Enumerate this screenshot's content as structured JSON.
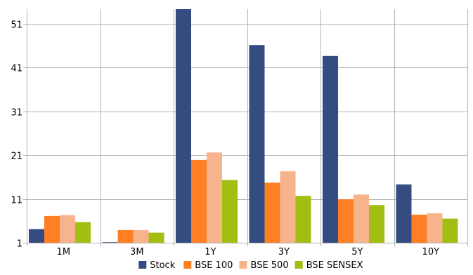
{
  "chart_data": {
    "type": "bar",
    "title": "",
    "xlabel": "",
    "ylabel": "",
    "categories": [
      "1M",
      "3M",
      "1Y",
      "3Y",
      "5Y",
      "10Y"
    ],
    "series": [
      {
        "name": "Stock",
        "color": "#344c80",
        "values": [
          4.1,
          0.2,
          54.3,
          46.1,
          43.6,
          14.3
        ]
      },
      {
        "name": "BSE 100",
        "color": "#ff7f24",
        "values": [
          7.1,
          3.9,
          19.9,
          14.7,
          10.9,
          7.4
        ]
      },
      {
        "name": "BSE 500",
        "color": "#f7b48c",
        "values": [
          7.3,
          3.9,
          21.6,
          17.3,
          12.0,
          7.7
        ]
      },
      {
        "name": "BSE SENSEX",
        "color": "#a3bd12",
        "values": [
          5.7,
          3.3,
          15.3,
          11.7,
          9.6,
          6.5
        ]
      }
    ],
    "yticks": [
      1,
      11,
      21,
      31,
      41,
      51
    ],
    "ylim": [
      1,
      54.3
    ],
    "grid": true,
    "legend_position": "bottom"
  }
}
